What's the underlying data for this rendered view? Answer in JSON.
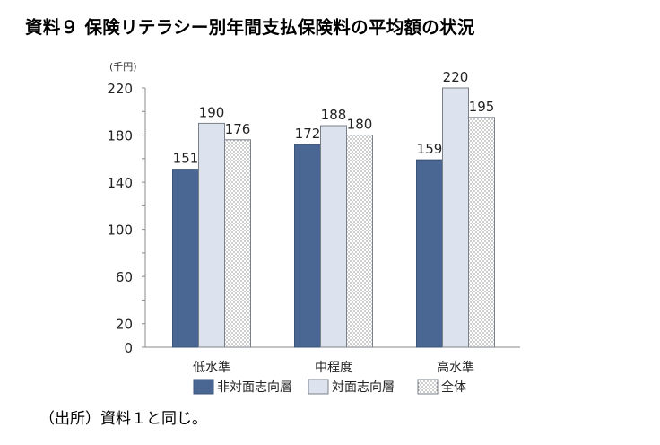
{
  "title": "資料９ 保険リテラシー別年間支払保険料の平均額の状況",
  "source": "（出所）資料１と同じ。",
  "chart_data": {
    "type": "bar",
    "unit_label": "(千円)",
    "categories": [
      "低水準",
      "中程度",
      "高水準"
    ],
    "series": [
      {
        "name": "非対面志向層",
        "values": [
          151,
          172,
          159
        ],
        "fill": "#4a6793",
        "pattern": "solid"
      },
      {
        "name": "対面志向層",
        "values": [
          190,
          188,
          220
        ],
        "fill": "#dde3ee",
        "pattern": "solid"
      },
      {
        "name": "全体",
        "values": [
          176,
          180,
          195
        ],
        "fill": "#ffffff",
        "pattern": "dots"
      }
    ],
    "yticks": [
      0,
      20,
      60,
      100,
      140,
      180,
      220
    ],
    "ylim": [
      0,
      220
    ],
    "legend": "bottom",
    "grid": false
  }
}
